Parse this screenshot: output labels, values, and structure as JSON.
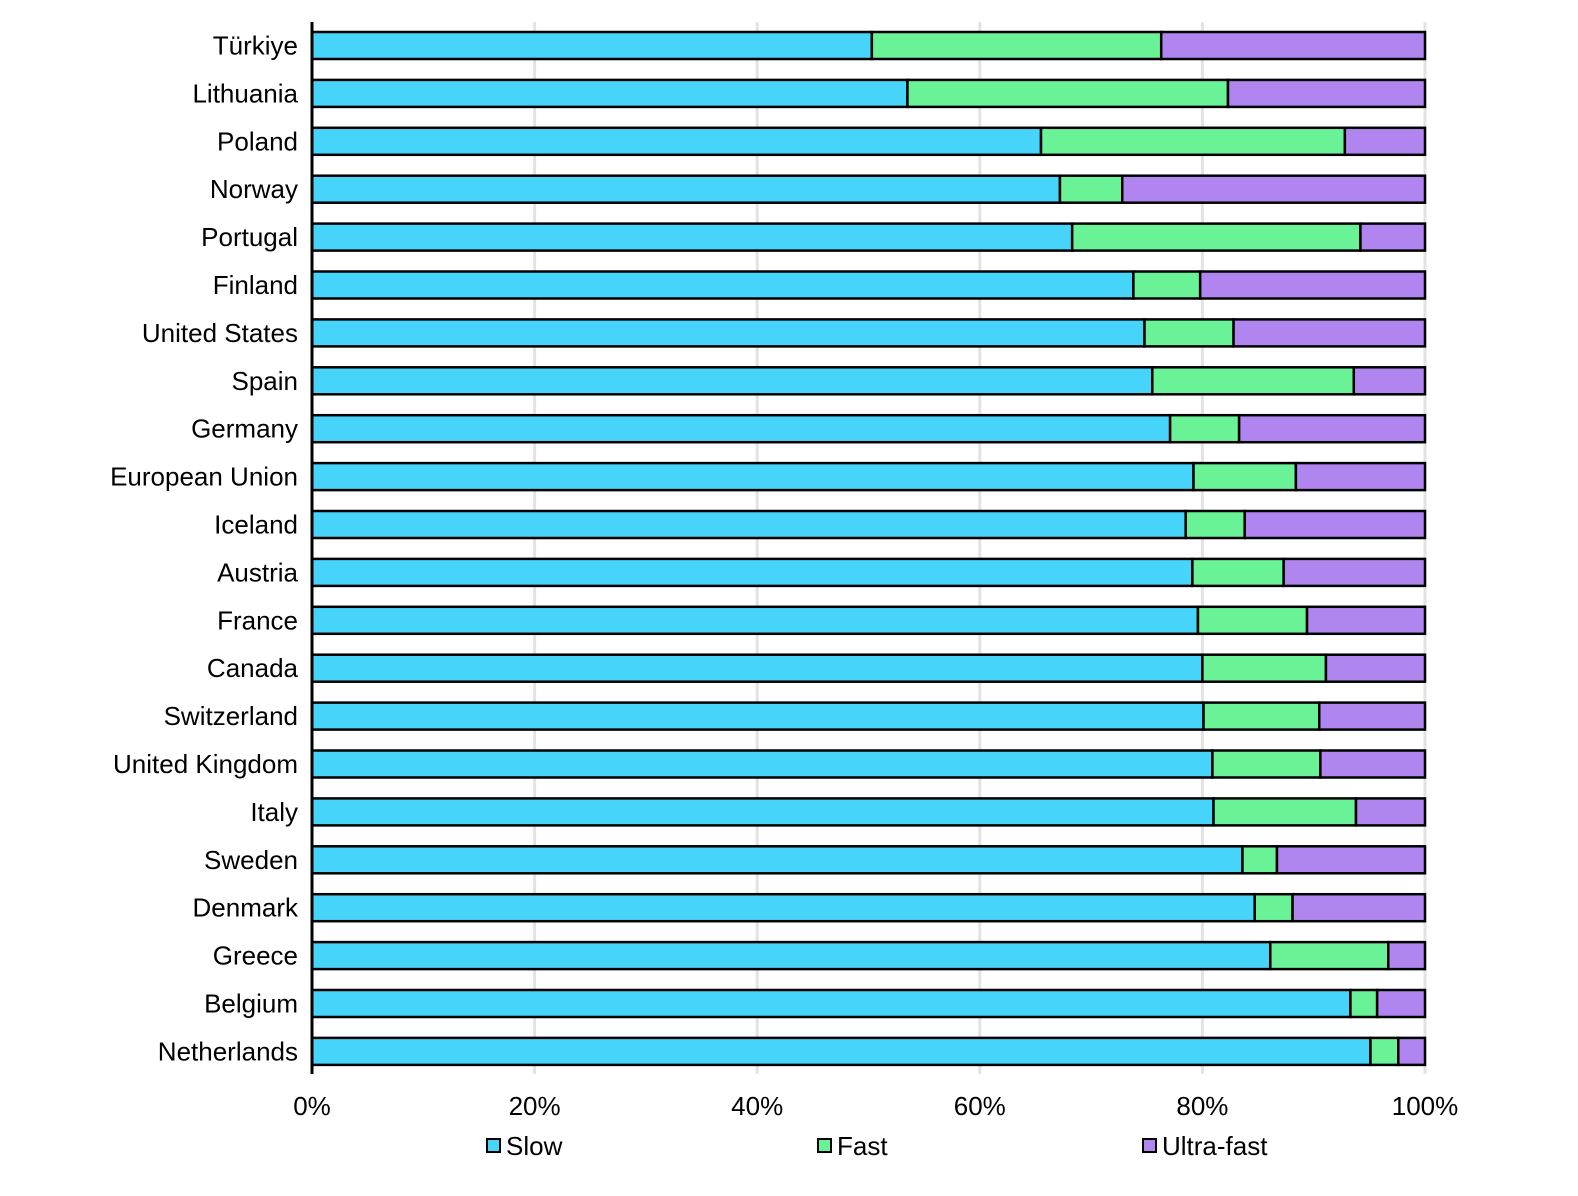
{
  "chart_data": {
    "type": "bar",
    "orientation": "horizontal",
    "stacked": "percent",
    "categories": [
      "Türkiye",
      "Lithuania",
      "Poland",
      "Norway",
      "Portugal",
      "Finland",
      "United States",
      "Spain",
      "Germany",
      "European Union",
      "Iceland",
      "Austria",
      "France",
      "Canada",
      "Switzerland",
      "United Kingdom",
      "Italy",
      "Sweden",
      "Denmark",
      "Greece",
      "Belgium",
      "Netherlands"
    ],
    "series": [
      {
        "name": "Slow",
        "color": "#46d4fa",
        "values": [
          50.3,
          53.5,
          65.5,
          67.2,
          68.3,
          73.8,
          74.8,
          75.5,
          77.1,
          79.2,
          78.5,
          79.1,
          79.6,
          80.0,
          80.1,
          80.9,
          81.0,
          83.6,
          84.7,
          86.1,
          93.3,
          95.1
        ]
      },
      {
        "name": "Fast",
        "color": "#6af296",
        "values": [
          26.0,
          28.8,
          27.3,
          5.6,
          25.9,
          6.0,
          8.0,
          18.1,
          6.2,
          9.2,
          5.3,
          8.2,
          9.8,
          11.1,
          10.4,
          9.7,
          12.8,
          3.1,
          3.4,
          10.6,
          2.4,
          2.5
        ]
      },
      {
        "name": "Ultra-fast",
        "color": "#b085f0",
        "values": [
          23.7,
          17.7,
          7.2,
          27.2,
          5.8,
          20.2,
          17.2,
          6.4,
          16.7,
          11.6,
          16.2,
          12.7,
          10.6,
          8.9,
          9.5,
          9.4,
          6.2,
          13.3,
          11.9,
          3.3,
          4.3,
          2.4
        ]
      }
    ],
    "xaxis": {
      "ticks": [
        "0%",
        "20%",
        "40%",
        "60%",
        "80%",
        "100%"
      ],
      "range": [
        0,
        100
      ]
    },
    "grid": "vertical",
    "legend": "bottom",
    "title": ""
  }
}
